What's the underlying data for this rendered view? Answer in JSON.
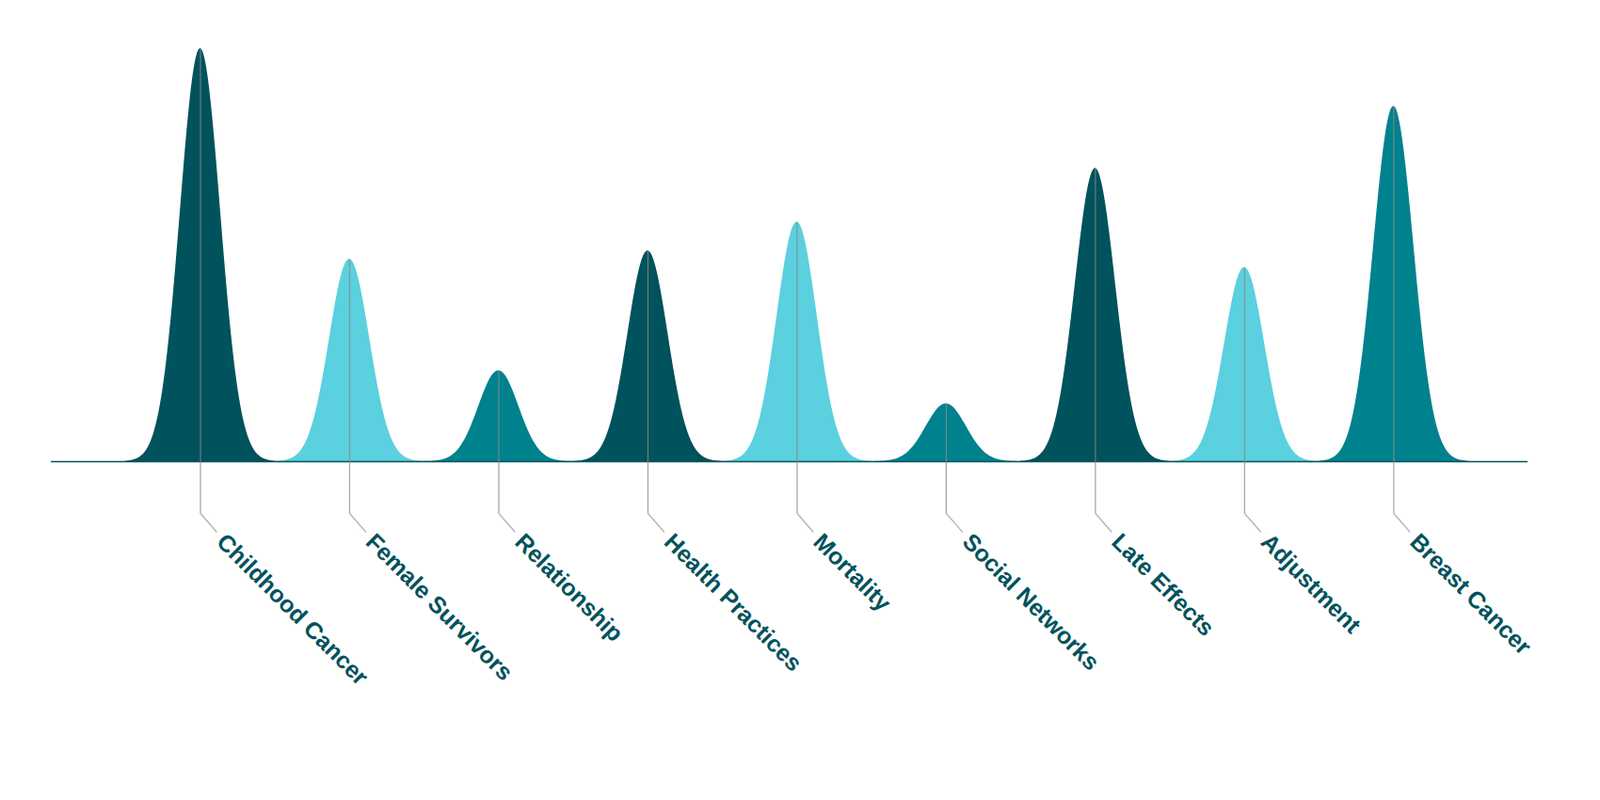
{
  "chart_data": {
    "type": "peaks",
    "categories": [
      "Childhood Cancer",
      "Female Survivors",
      "Relationship",
      "Health Practices",
      "Mortality",
      "Social Networks",
      "Late Effects",
      "Adjustment",
      "Breast Cancer"
    ],
    "values": [
      100,
      49,
      22,
      51,
      58,
      14,
      71,
      47,
      86
    ],
    "colors": [
      "#00525c",
      "#5bd0de",
      "#00818e",
      "#00525c",
      "#5bd0de",
      "#00818e",
      "#00525c",
      "#5bd0de",
      "#00818e"
    ],
    "ylim": [
      0,
      100
    ],
    "tick_labels": false
  }
}
